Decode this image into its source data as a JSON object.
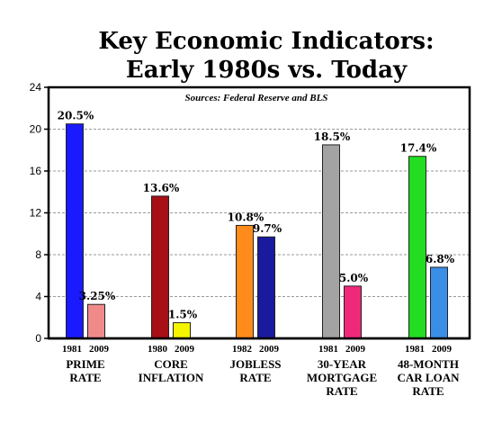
{
  "chart_data": {
    "type": "bar",
    "title_lines": [
      "Key Economic Indicators:",
      "Early 1980s vs. Today"
    ],
    "source": "Sources: Federal Reserve and BLS",
    "ylim": [
      0,
      24
    ],
    "yticks": [
      0,
      4,
      8,
      12,
      16,
      20,
      24
    ],
    "grid": true,
    "groups": [
      {
        "category": [
          "PRIME",
          "RATE"
        ],
        "bars": [
          {
            "year": "1981",
            "value": 20.5,
            "label": "20.5%",
            "color": "#1a1aff"
          },
          {
            "year": "2009",
            "value": 3.25,
            "label": "3.25%",
            "color": "#f08a8a"
          }
        ]
      },
      {
        "category": [
          "CORE",
          "INFLATION"
        ],
        "bars": [
          {
            "year": "1980",
            "value": 13.6,
            "label": "13.6%",
            "color": "#a50f15"
          },
          {
            "year": "2009",
            "value": 1.5,
            "label": "1.5%",
            "color": "#f5f500"
          }
        ]
      },
      {
        "category": [
          "JOBLESS",
          "RATE"
        ],
        "bars": [
          {
            "year": "1982",
            "value": 10.8,
            "label": "10.8%",
            "color": "#ff8c1a"
          },
          {
            "year": "2009",
            "value": 9.7,
            "label": "9.7%",
            "color": "#1a1a9e"
          }
        ]
      },
      {
        "category": [
          "30-YEAR",
          "MORTGAGE",
          "RATE"
        ],
        "bars": [
          {
            "year": "1981",
            "value": 18.5,
            "label": "18.5%",
            "color": "#a3a3a3"
          },
          {
            "year": "2009",
            "value": 5.0,
            "label": "5.0%",
            "color": "#f0287a"
          }
        ]
      },
      {
        "category": [
          "48-MONTH",
          "CAR LOAN",
          "RATE"
        ],
        "bars": [
          {
            "year": "1981",
            "value": 17.4,
            "label": "17.4%",
            "color": "#22dd22"
          },
          {
            "year": "2009",
            "value": 6.8,
            "label": "6.8%",
            "color": "#3a8ee6"
          }
        ]
      }
    ]
  }
}
